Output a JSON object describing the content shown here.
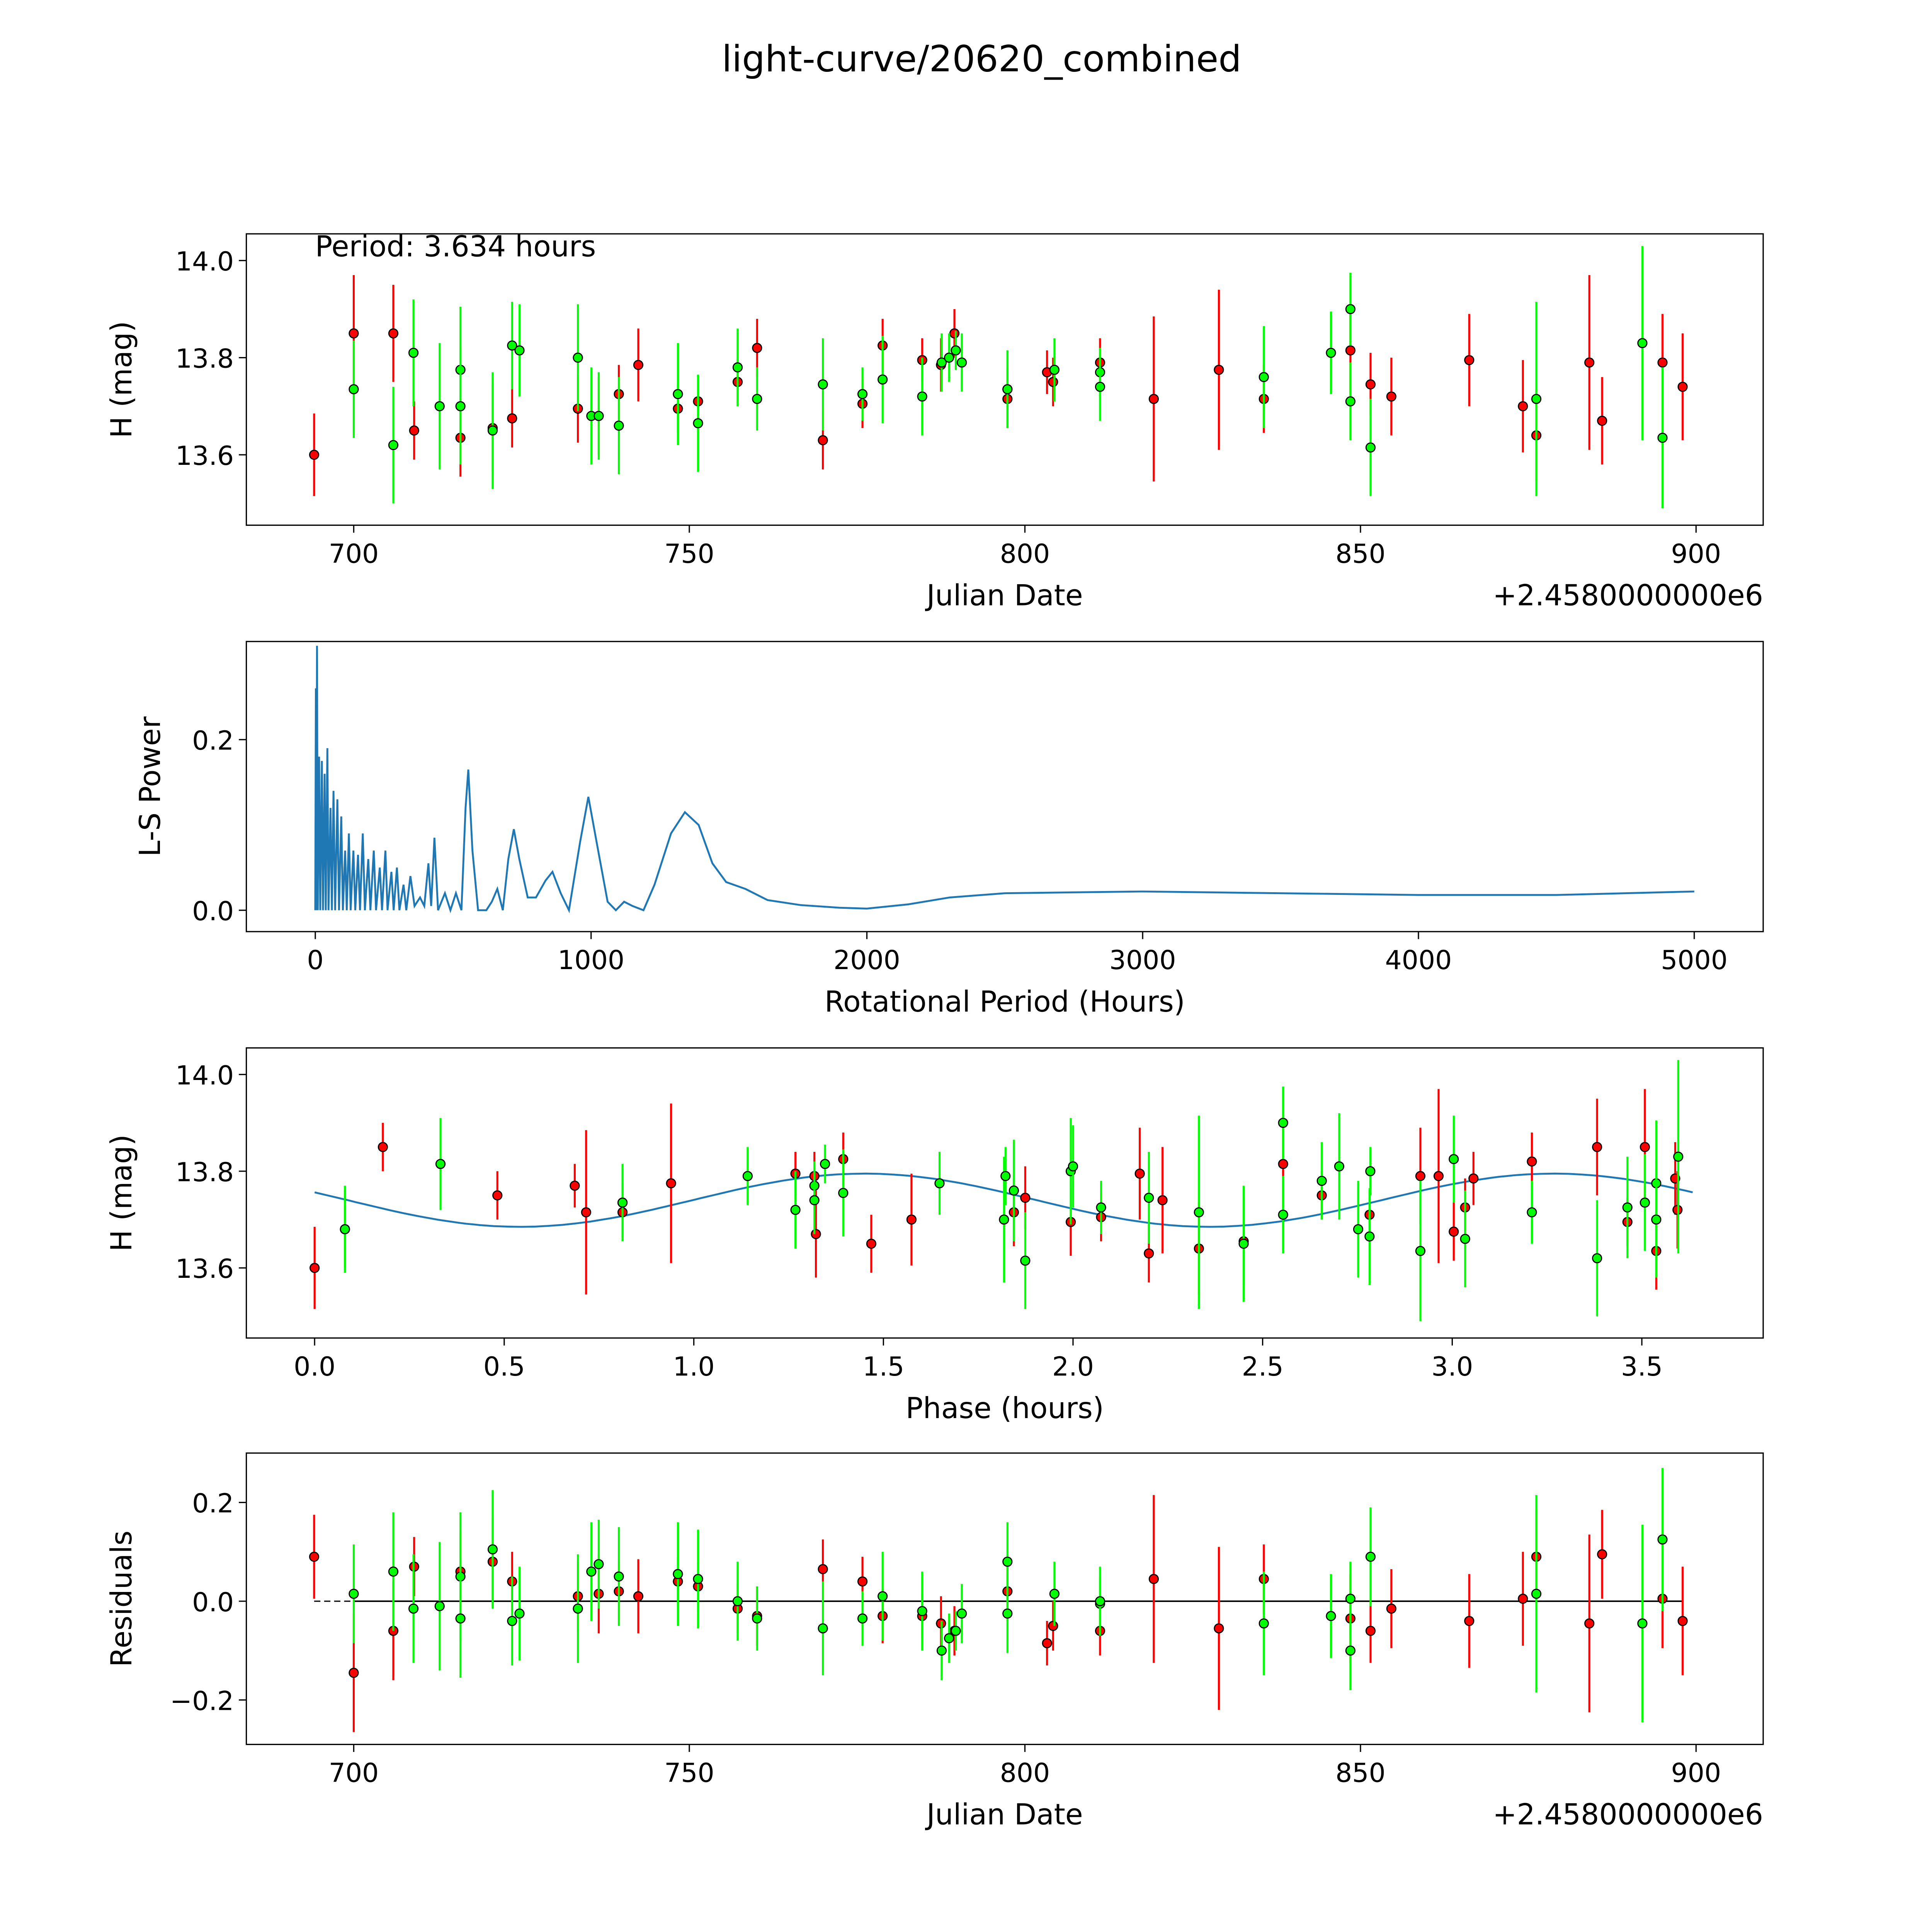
{
  "chart_data": [
    {
      "type": "scatter",
      "panel": "light-curve",
      "title": "light-curve/20620_combined",
      "annotation": "Period: 3.634 hours",
      "xlabel": "Julian Date",
      "ylabel": "H (mag)",
      "x_offset_label": "+2.4580000000e6",
      "xlim": [
        684,
        910
      ],
      "ylim": [
        13.455,
        14.055
      ],
      "xticks": [
        "700",
        "750",
        "800",
        "850",
        "900"
      ],
      "yticks": [
        "13.6",
        "13.8",
        "14.0"
      ],
      "colors": {
        "red": "#ff0000",
        "green": "#00ff00",
        "edge": "#000000"
      },
      "series": [
        {
          "name": "red",
          "points": [
            {
              "jd": 694.1,
              "h": 13.6,
              "err": 0.085,
              "res": 0.09
            },
            {
              "jd": 700.0,
              "h": 13.85,
              "err": 0.12,
              "res": -0.145
            },
            {
              "jd": 705.9,
              "h": 13.85,
              "err": 0.1,
              "res": -0.06
            },
            {
              "jd": 709.0,
              "h": 13.65,
              "err": 0.06,
              "res": 0.07
            },
            {
              "jd": 715.9,
              "h": 13.635,
              "err": 0.08,
              "res": 0.06
            },
            {
              "jd": 720.7,
              "h": 13.655,
              "err": 0.09,
              "res": 0.08
            },
            {
              "jd": 723.6,
              "h": 13.675,
              "err": 0.06,
              "res": 0.04
            },
            {
              "jd": 733.4,
              "h": 13.695,
              "err": 0.07,
              "res": 0.01
            },
            {
              "jd": 736.5,
              "h": 13.68,
              "err": 0.08,
              "res": 0.015
            },
            {
              "jd": 739.5,
              "h": 13.725,
              "err": 0.06,
              "res": 0.02
            },
            {
              "jd": 742.4,
              "h": 13.785,
              "err": 0.075,
              "res": 0.01
            },
            {
              "jd": 748.3,
              "h": 13.695,
              "err": 0.05,
              "res": 0.04
            },
            {
              "jd": 751.3,
              "h": 13.71,
              "err": 0.05,
              "res": 0.03
            },
            {
              "jd": 757.2,
              "h": 13.75,
              "err": 0.05,
              "res": -0.015
            },
            {
              "jd": 760.1,
              "h": 13.82,
              "err": 0.06,
              "res": -0.03
            },
            {
              "jd": 769.9,
              "h": 13.63,
              "err": 0.06,
              "res": 0.065
            },
            {
              "jd": 775.8,
              "h": 13.705,
              "err": 0.05,
              "res": 0.04
            },
            {
              "jd": 778.8,
              "h": 13.825,
              "err": 0.055,
              "res": -0.03
            },
            {
              "jd": 784.7,
              "h": 13.795,
              "err": 0.045,
              "res": -0.03
            },
            {
              "jd": 787.5,
              "h": 13.785,
              "err": 0.055,
              "res": -0.045
            },
            {
              "jd": 789.5,
              "h": 13.85,
              "err": 0.05,
              "res": -0.06
            },
            {
              "jd": 797.4,
              "h": 13.715,
              "err": 0.06,
              "res": 0.02
            },
            {
              "jd": 803.3,
              "h": 13.77,
              "err": 0.045,
              "res": -0.085
            },
            {
              "jd": 804.2,
              "h": 13.75,
              "err": 0.05,
              "res": -0.05
            },
            {
              "jd": 811.2,
              "h": 13.79,
              "err": 0.05,
              "res": -0.06
            },
            {
              "jd": 819.2,
              "h": 13.715,
              "err": 0.17,
              "res": 0.045
            },
            {
              "jd": 828.9,
              "h": 13.775,
              "err": 0.165,
              "res": -0.055
            },
            {
              "jd": 835.6,
              "h": 13.715,
              "err": 0.07,
              "res": 0.045
            },
            {
              "jd": 848.5,
              "h": 13.815,
              "err": 0.09,
              "res": -0.035
            },
            {
              "jd": 851.5,
              "h": 13.745,
              "err": 0.065,
              "res": -0.06
            },
            {
              "jd": 854.6,
              "h": 13.72,
              "err": 0.08,
              "res": -0.015
            },
            {
              "jd": 866.2,
              "h": 13.795,
              "err": 0.095,
              "res": -0.04
            },
            {
              "jd": 874.2,
              "h": 13.7,
              "err": 0.095,
              "res": 0.005
            },
            {
              "jd": 876.2,
              "h": 13.64,
              "err": 0.095,
              "res": 0.09
            },
            {
              "jd": 884.1,
              "h": 13.79,
              "err": 0.18,
              "res": -0.045
            },
            {
              "jd": 886.0,
              "h": 13.67,
              "err": 0.09,
              "res": 0.095
            },
            {
              "jd": 895.0,
              "h": 13.79,
              "err": 0.1,
              "res": 0.005
            },
            {
              "jd": 898.0,
              "h": 13.74,
              "err": 0.11,
              "res": -0.04
            }
          ]
        },
        {
          "name": "green",
          "points": [
            {
              "jd": 700.0,
              "h": 13.735,
              "err": 0.1,
              "res": 0.015
            },
            {
              "jd": 705.9,
              "h": 13.62,
              "err": 0.12,
              "res": 0.06
            },
            {
              "jd": 708.9,
              "h": 13.81,
              "err": 0.11,
              "res": -0.015
            },
            {
              "jd": 712.8,
              "h": 13.7,
              "err": 0.13,
              "res": -0.01
            },
            {
              "jd": 715.9,
              "h": 13.775,
              "err": 0.13,
              "res": 0.05
            },
            {
              "jd": 715.9,
              "h": 13.7,
              "err": 0.12,
              "res": -0.035
            },
            {
              "jd": 720.7,
              "h": 13.65,
              "err": 0.12,
              "res": 0.105
            },
            {
              "jd": 723.6,
              "h": 13.825,
              "err": 0.09,
              "res": -0.04
            },
            {
              "jd": 724.7,
              "h": 13.815,
              "err": 0.095,
              "res": -0.025
            },
            {
              "jd": 733.4,
              "h": 13.8,
              "err": 0.11,
              "res": -0.015
            },
            {
              "jd": 735.4,
              "h": 13.68,
              "err": 0.1,
              "res": 0.06
            },
            {
              "jd": 736.5,
              "h": 13.68,
              "err": 0.09,
              "res": 0.075
            },
            {
              "jd": 739.5,
              "h": 13.66,
              "err": 0.1,
              "res": 0.05
            },
            {
              "jd": 748.3,
              "h": 13.725,
              "err": 0.105,
              "res": 0.055
            },
            {
              "jd": 751.3,
              "h": 13.665,
              "err": 0.1,
              "res": 0.045
            },
            {
              "jd": 757.2,
              "h": 13.78,
              "err": 0.08,
              "res": 0.0
            },
            {
              "jd": 760.1,
              "h": 13.715,
              "err": 0.065,
              "res": -0.035
            },
            {
              "jd": 769.9,
              "h": 13.745,
              "err": 0.095,
              "res": -0.055
            },
            {
              "jd": 775.8,
              "h": 13.725,
              "err": 0.055,
              "res": -0.035
            },
            {
              "jd": 778.8,
              "h": 13.755,
              "err": 0.09,
              "res": 0.01
            },
            {
              "jd": 784.7,
              "h": 13.72,
              "err": 0.08,
              "res": -0.02
            },
            {
              "jd": 787.6,
              "h": 13.79,
              "err": 0.06,
              "res": -0.1
            },
            {
              "jd": 788.7,
              "h": 13.8,
              "err": 0.05,
              "res": -0.075
            },
            {
              "jd": 789.7,
              "h": 13.815,
              "err": 0.04,
              "res": -0.06
            },
            {
              "jd": 790.6,
              "h": 13.79,
              "err": 0.06,
              "res": -0.025
            },
            {
              "jd": 797.4,
              "h": 13.735,
              "err": 0.08,
              "res": 0.08
            },
            {
              "jd": 797.4,
              "h": 13.735,
              "err": 0.08,
              "res": -0.025
            },
            {
              "jd": 804.4,
              "h": 13.775,
              "err": 0.065,
              "res": 0.015
            },
            {
              "jd": 811.2,
              "h": 13.77,
              "err": 0.05,
              "res": -0.005
            },
            {
              "jd": 811.2,
              "h": 13.74,
              "err": 0.07,
              "res": 0.0
            },
            {
              "jd": 835.6,
              "h": 13.76,
              "err": 0.105,
              "res": -0.045
            },
            {
              "jd": 845.6,
              "h": 13.81,
              "err": 0.085,
              "res": -0.03
            },
            {
              "jd": 848.5,
              "h": 13.9,
              "err": 0.075,
              "res": 0.005
            },
            {
              "jd": 848.5,
              "h": 13.71,
              "err": 0.08,
              "res": -0.1
            },
            {
              "jd": 851.5,
              "h": 13.615,
              "err": 0.1,
              "res": 0.09
            },
            {
              "jd": 876.2,
              "h": 13.715,
              "err": 0.2,
              "res": 0.015
            },
            {
              "jd": 892.0,
              "h": 13.83,
              "err": 0.2,
              "res": -0.045
            },
            {
              "jd": 895.0,
              "h": 13.635,
              "err": 0.145,
              "res": 0.125
            }
          ]
        }
      ]
    },
    {
      "type": "line",
      "panel": "periodogram",
      "xlabel": "Rotational Period (Hours)",
      "ylabel": "L-S Power",
      "xlim": [
        -250,
        5250
      ],
      "ylim": [
        -0.025,
        0.315
      ],
      "xticks": [
        "0",
        "1000",
        "2000",
        "3000",
        "4000",
        "5000"
      ],
      "yticks": [
        "0.0",
        "0.2"
      ],
      "color": "#1f77b4",
      "points": [
        [
          0,
          0.0
        ],
        [
          2,
          0.26
        ],
        [
          4,
          0.0
        ],
        [
          6,
          0.31
        ],
        [
          9,
          0.0
        ],
        [
          14,
          0.18
        ],
        [
          18,
          0.0
        ],
        [
          24,
          0.175
        ],
        [
          28,
          0.0
        ],
        [
          34,
          0.16
        ],
        [
          38,
          0.0
        ],
        [
          44,
          0.19
        ],
        [
          48,
          0.0
        ],
        [
          55,
          0.12
        ],
        [
          60,
          0.0
        ],
        [
          66,
          0.14
        ],
        [
          72,
          0.0
        ],
        [
          80,
          0.13
        ],
        [
          86,
          0.0
        ],
        [
          94,
          0.11
        ],
        [
          100,
          0.0
        ],
        [
          108,
          0.07
        ],
        [
          114,
          0.0
        ],
        [
          122,
          0.09
        ],
        [
          128,
          0.0
        ],
        [
          138,
          0.07
        ],
        [
          145,
          0.0
        ],
        [
          155,
          0.065
        ],
        [
          162,
          0.0
        ],
        [
          172,
          0.09
        ],
        [
          180,
          0.0
        ],
        [
          192,
          0.06
        ],
        [
          200,
          0.0
        ],
        [
          212,
          0.07
        ],
        [
          220,
          0.0
        ],
        [
          234,
          0.05
        ],
        [
          242,
          0.0
        ],
        [
          254,
          0.07
        ],
        [
          262,
          0.0
        ],
        [
          276,
          0.045
        ],
        [
          284,
          0.0
        ],
        [
          296,
          0.05
        ],
        [
          305,
          0.0
        ],
        [
          320,
          0.03
        ],
        [
          330,
          0.0
        ],
        [
          345,
          0.04
        ],
        [
          360,
          0.005
        ],
        [
          380,
          0.015
        ],
        [
          395,
          0.005
        ],
        [
          410,
          0.055
        ],
        [
          420,
          0.005
        ],
        [
          432,
          0.085
        ],
        [
          445,
          0.0
        ],
        [
          470,
          0.02
        ],
        [
          490,
          0.0
        ],
        [
          510,
          0.02
        ],
        [
          530,
          0.0
        ],
        [
          545,
          0.12
        ],
        [
          555,
          0.165
        ],
        [
          570,
          0.07
        ],
        [
          590,
          0.0
        ],
        [
          620,
          0.0
        ],
        [
          640,
          0.01
        ],
        [
          660,
          0.025
        ],
        [
          680,
          0.0
        ],
        [
          700,
          0.06
        ],
        [
          720,
          0.095
        ],
        [
          740,
          0.06
        ],
        [
          770,
          0.015
        ],
        [
          800,
          0.015
        ],
        [
          835,
          0.035
        ],
        [
          860,
          0.045
        ],
        [
          890,
          0.02
        ],
        [
          920,
          0.0
        ],
        [
          960,
          0.08
        ],
        [
          990,
          0.133
        ],
        [
          1020,
          0.08
        ],
        [
          1060,
          0.01
        ],
        [
          1090,
          0.0
        ],
        [
          1120,
          0.01
        ],
        [
          1150,
          0.005
        ],
        [
          1190,
          0.0
        ],
        [
          1230,
          0.03
        ],
        [
          1290,
          0.09
        ],
        [
          1340,
          0.115
        ],
        [
          1390,
          0.1
        ],
        [
          1440,
          0.055
        ],
        [
          1490,
          0.033
        ],
        [
          1560,
          0.025
        ],
        [
          1640,
          0.012
        ],
        [
          1760,
          0.006
        ],
        [
          1900,
          0.003
        ],
        [
          2000,
          0.002
        ],
        [
          2150,
          0.007
        ],
        [
          2300,
          0.015
        ],
        [
          2500,
          0.02
        ],
        [
          3000,
          0.022
        ],
        [
          3500,
          0.02
        ],
        [
          4000,
          0.018
        ],
        [
          4500,
          0.018
        ],
        [
          5000,
          0.022
        ]
      ]
    },
    {
      "type": "scatter",
      "panel": "phase-folded",
      "xlabel": "Phase (hours)",
      "ylabel": "H (mag)",
      "period_hours": 3.634,
      "xlim": [
        -0.18,
        3.82
      ],
      "ylim": [
        13.455,
        14.055
      ],
      "xticks": [
        "0.0",
        "0.5",
        "1.0",
        "1.5",
        "2.0",
        "2.5",
        "3.0",
        "3.5"
      ],
      "yticks": [
        "13.6",
        "13.8",
        "14.0"
      ],
      "model": {
        "mean": 13.74,
        "amplitude": 0.055,
        "half_period": 1.817,
        "phase0": 0.996,
        "color": "#1f77b4"
      }
    },
    {
      "type": "scatter",
      "panel": "residuals",
      "xlabel": "Julian Date",
      "ylabel": "Residuals",
      "x_offset_label": "+2.4580000000e6",
      "xlim": [
        684,
        910
      ],
      "ylim": [
        -0.29,
        0.3
      ],
      "xticks": [
        "700",
        "750",
        "800",
        "850",
        "900"
      ],
      "yticks": [
        "−0.2",
        "0.0",
        "0.2"
      ]
    }
  ]
}
